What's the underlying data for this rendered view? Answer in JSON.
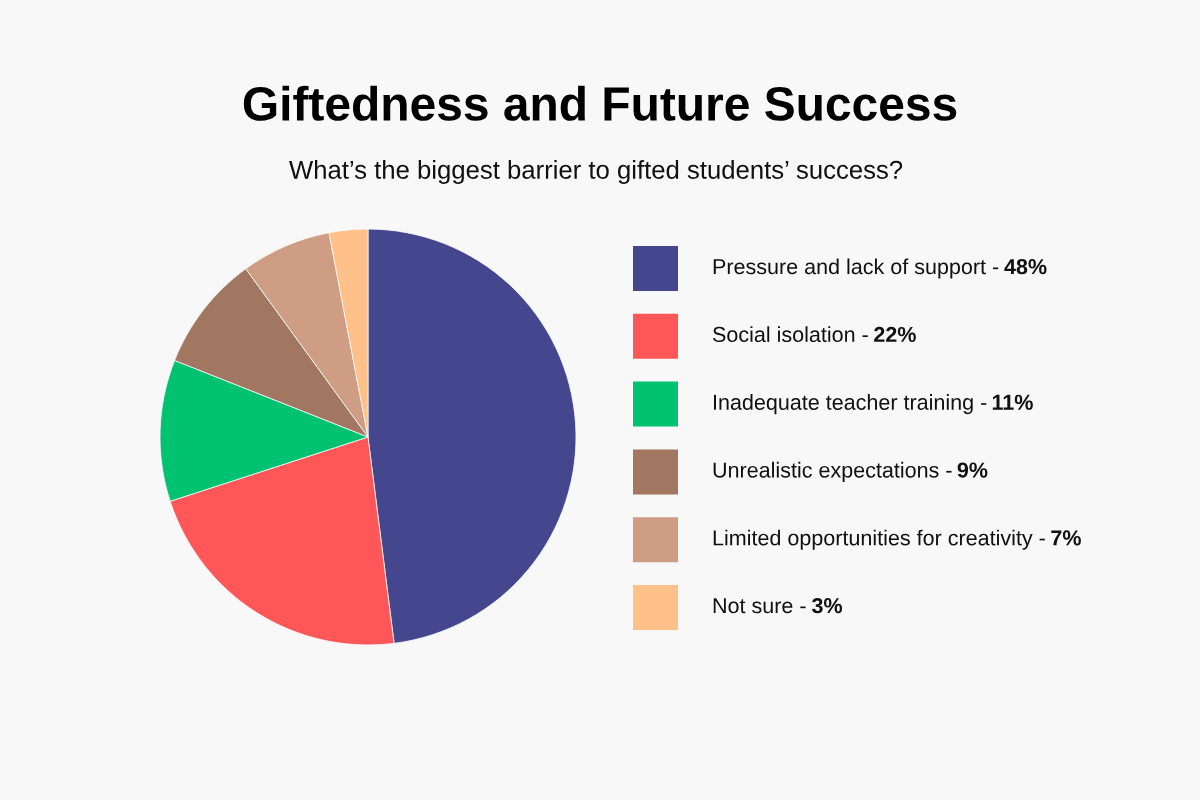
{
  "chart_data": {
    "type": "pie",
    "title": "Giftedness and Future Success",
    "subtitle": "What’s the biggest barrier to gifted students’ success?",
    "categories": [
      "Pressure and lack of support -",
      "Social isolation -",
      "Inadequate teacher training -",
      "Unrealistic expectations -",
      "Limited opportunities for creativity -",
      "Not sure -"
    ],
    "values": [
      48,
      22,
      11,
      9,
      7,
      3
    ],
    "value_labels": [
      "48%",
      "22%",
      "11%",
      "9%",
      "7%",
      "3%"
    ],
    "colors": [
      "#44478e",
      "#ff5757",
      "#00c270",
      "#a27762",
      "#ce9d83",
      "#ffc08a"
    ],
    "legend": "right"
  }
}
